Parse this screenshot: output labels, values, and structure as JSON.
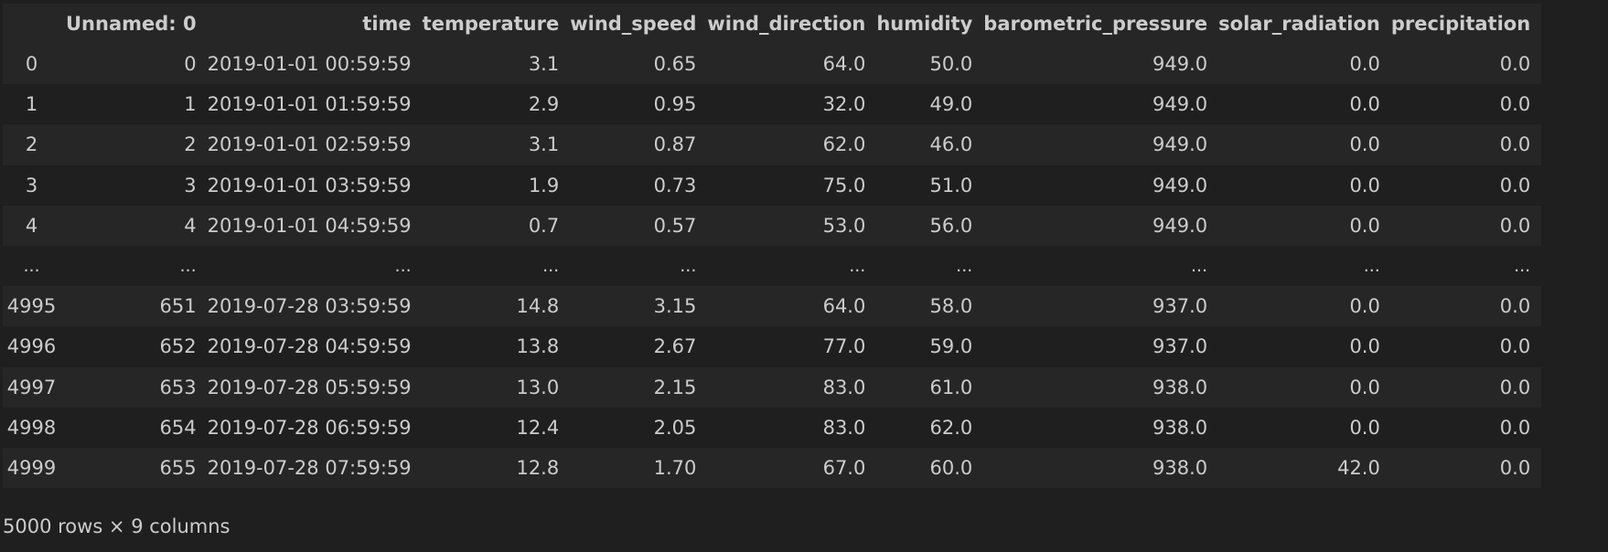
{
  "table": {
    "columns": [
      "",
      "Unnamed: 0",
      "time",
      "temperature",
      "wind_speed",
      "wind_direction",
      "humidity",
      "barometric_pressure",
      "solar_radiation",
      "precipitation"
    ],
    "rows": [
      [
        "0",
        "0",
        "2019-01-01 00:59:59",
        "3.1",
        "0.65",
        "64.0",
        "50.0",
        "949.0",
        "0.0",
        "0.0"
      ],
      [
        "1",
        "1",
        "2019-01-01 01:59:59",
        "2.9",
        "0.95",
        "32.0",
        "49.0",
        "949.0",
        "0.0",
        "0.0"
      ],
      [
        "2",
        "2",
        "2019-01-01 02:59:59",
        "3.1",
        "0.87",
        "62.0",
        "46.0",
        "949.0",
        "0.0",
        "0.0"
      ],
      [
        "3",
        "3",
        "2019-01-01 03:59:59",
        "1.9",
        "0.73",
        "75.0",
        "51.0",
        "949.0",
        "0.0",
        "0.0"
      ],
      [
        "4",
        "4",
        "2019-01-01 04:59:59",
        "0.7",
        "0.57",
        "53.0",
        "56.0",
        "949.0",
        "0.0",
        "0.0"
      ],
      [
        "...",
        "...",
        "...",
        "...",
        "...",
        "...",
        "...",
        "...",
        "...",
        "..."
      ],
      [
        "4995",
        "651",
        "2019-07-28 03:59:59",
        "14.8",
        "3.15",
        "64.0",
        "58.0",
        "937.0",
        "0.0",
        "0.0"
      ],
      [
        "4996",
        "652",
        "2019-07-28 04:59:59",
        "13.8",
        "2.67",
        "77.0",
        "59.0",
        "937.0",
        "0.0",
        "0.0"
      ],
      [
        "4997",
        "653",
        "2019-07-28 05:59:59",
        "13.0",
        "2.15",
        "83.0",
        "61.0",
        "938.0",
        "0.0",
        "0.0"
      ],
      [
        "4998",
        "654",
        "2019-07-28 06:59:59",
        "12.4",
        "2.05",
        "83.0",
        "62.0",
        "938.0",
        "0.0",
        "0.0"
      ],
      [
        "4999",
        "655",
        "2019-07-28 07:59:59",
        "12.8",
        "1.70",
        "67.0",
        "60.0",
        "938.0",
        "42.0",
        "0.0"
      ]
    ]
  },
  "summary": "5000 rows × 9 columns"
}
